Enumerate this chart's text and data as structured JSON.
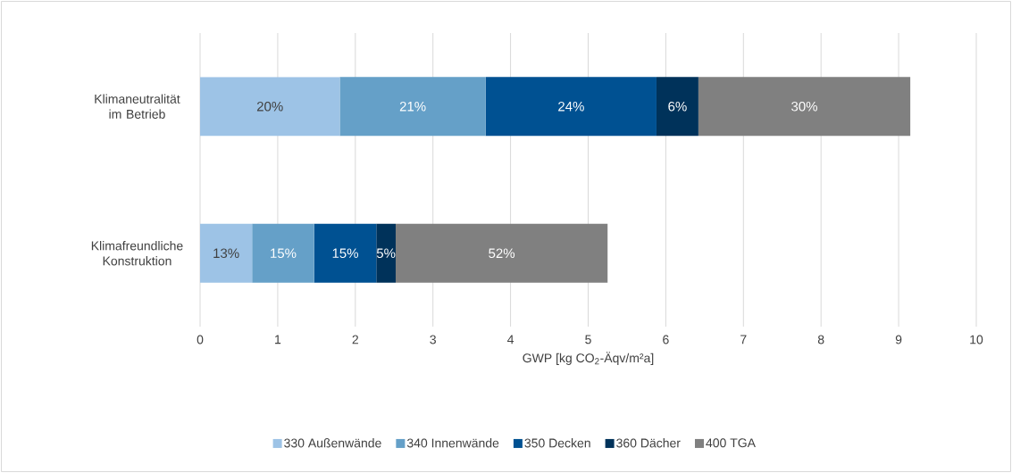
{
  "chart_data": {
    "type": "bar",
    "orientation": "horizontal",
    "stacked": true,
    "categories": [
      "Klimaneutralität im Betrieb",
      "Klimafreundliche Konstruktion"
    ],
    "series": [
      {
        "name": "330 Außenwände",
        "color": "#9dc3e6",
        "values": [
          1.8,
          0.67
        ]
      },
      {
        "name": "340 Innenwände",
        "color": "#65a0c8",
        "values": [
          1.88,
          0.8
        ]
      },
      {
        "name": "350 Decken",
        "color": "#005192",
        "values": [
          2.2,
          0.8
        ]
      },
      {
        "name": "360 Dächer",
        "color": "#00325a",
        "values": [
          0.54,
          0.25
        ]
      },
      {
        "name": "400 TGA",
        "color": "#808080",
        "values": [
          2.73,
          2.73
        ]
      }
    ],
    "annotations": [
      "20%",
      "21%",
      "24%",
      "6%",
      "30%",
      "13%",
      "15%",
      "15%",
      "5%",
      "52%"
    ],
    "xlabel": "GWP [kg CO$_{2}$-Äqv/m²a]",
    "xlim": [
      0,
      10
    ],
    "xticks": [
      0,
      1,
      2,
      3,
      4,
      5,
      6,
      7,
      8,
      9,
      10
    ],
    "grid": "x",
    "legend": "bottom"
  }
}
